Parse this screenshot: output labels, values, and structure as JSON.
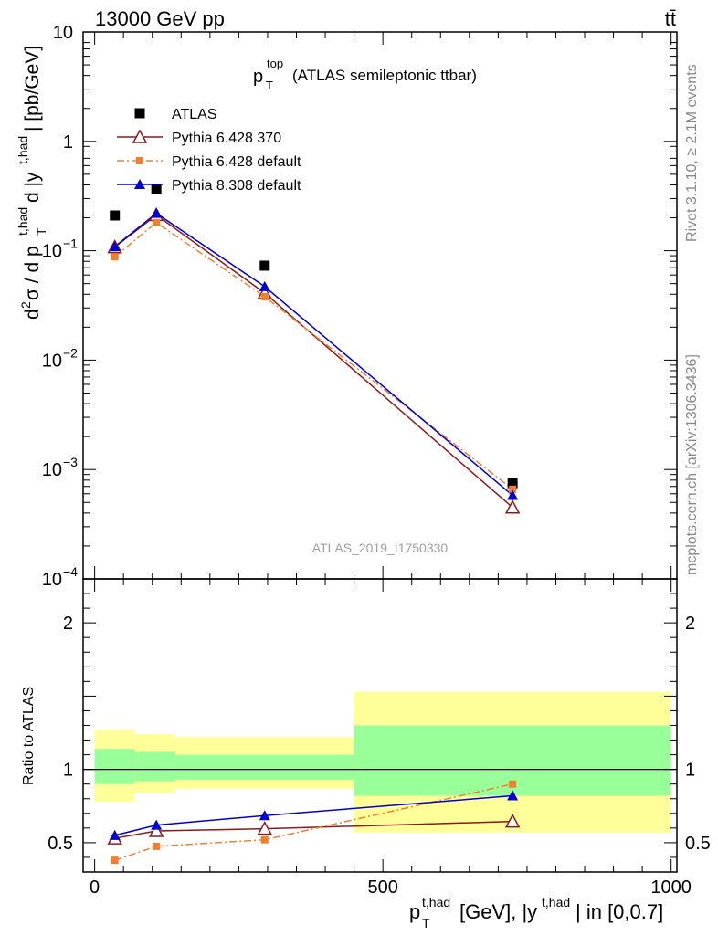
{
  "header": {
    "energy_label": "13000 GeV pp",
    "process_label": "tt̄"
  },
  "side": {
    "rivet": "Rivet 3.1.10, ≥ 2.1M events",
    "mcplots": "mcplots.cern.ch [arXiv:1306.3436]"
  },
  "chart_data": [
    {
      "type": "scatter",
      "panel": "main",
      "title": "p_T^top (ATLAS semileptonic ttbar)",
      "analysis_label": "ATLAS_2019_I1750330",
      "ylabel": "d²σ / d p_T^t,had d |y^t,had| [pb/GeV]",
      "yscale": "log",
      "ylim": [
        0.0001,
        10
      ],
      "xlim": [
        -20,
        1010
      ],
      "y_tick_labels": [
        "10",
        "1",
        "10⁻¹",
        "10⁻²",
        "10⁻³",
        "10⁻⁴"
      ],
      "x": [
        35,
        107,
        295,
        725
      ],
      "series": [
        {
          "name": "ATLAS",
          "values": [
            0.21,
            0.37,
            0.073,
            0.00075
          ],
          "color": "#000000",
          "marker": "square-filled",
          "line": "none"
        },
        {
          "name": "Pythia 6.428 370",
          "values": [
            0.108,
            0.212,
            0.041,
            0.00045
          ],
          "color": "#8b1a1a",
          "marker": "triangle-open",
          "line": "solid"
        },
        {
          "name": "Pythia 6.428 default",
          "values": [
            0.088,
            0.181,
            0.038,
            0.00066
          ],
          "color": "#f08030",
          "marker": "square-small",
          "line": "dashdot"
        },
        {
          "name": "Pythia 8.308 default",
          "values": [
            0.109,
            0.22,
            0.047,
            0.00058
          ],
          "color": "#0000d0",
          "marker": "triangle-filled",
          "line": "solid"
        }
      ],
      "legend_placement": "top-left"
    },
    {
      "type": "scatter",
      "panel": "ratio",
      "ylabel": "Ratio to ATLAS",
      "xlabel": "p_T^t,had [GeV], |y^t,had| in [0,0.7]",
      "ylim": [
        0.3,
        2.3
      ],
      "xlim": [
        -20,
        1010
      ],
      "x_tick_labels": [
        "0",
        "500",
        "1000"
      ],
      "y_tick_labels": [
        "0.5",
        "1",
        "2"
      ],
      "bands": [
        {
          "x_range": [
            0,
            70
          ],
          "yellow": [
            0.78,
            1.27
          ],
          "green": [
            0.9,
            1.14
          ]
        },
        {
          "x_range": [
            70,
            140
          ],
          "yellow": [
            0.84,
            1.24
          ],
          "green": [
            0.92,
            1.12
          ]
        },
        {
          "x_range": [
            140,
            450
          ],
          "yellow": [
            0.87,
            1.22
          ],
          "green": [
            0.93,
            1.1
          ]
        },
        {
          "x_range": [
            450,
            1000
          ],
          "yellow": [
            0.57,
            1.53
          ],
          "green": [
            0.82,
            1.3
          ]
        }
      ],
      "x": [
        35,
        107,
        295,
        725
      ],
      "series": [
        {
          "name": "Pythia 6.428 370",
          "values": [
            0.53,
            0.58,
            0.595,
            0.645
          ],
          "color": "#8b1a1a",
          "marker": "triangle-open",
          "line": "solid"
        },
        {
          "name": "Pythia 6.428 default",
          "values": [
            0.38,
            0.475,
            0.52,
            0.9
          ],
          "color": "#f08030",
          "marker": "square-small",
          "line": "dashdot"
        },
        {
          "name": "Pythia 8.308 default",
          "values": [
            0.55,
            0.62,
            0.685,
            0.82
          ],
          "color": "#0000d0",
          "marker": "triangle-filled",
          "line": "solid"
        }
      ],
      "reference_line": 1
    }
  ]
}
